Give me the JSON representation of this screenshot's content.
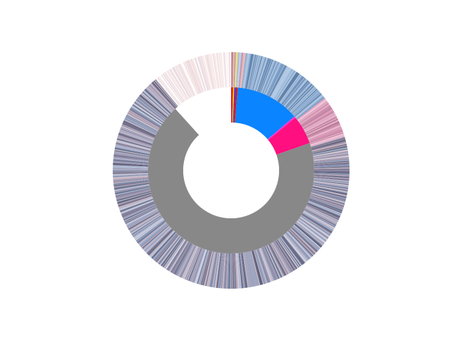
{
  "chart_data": {
    "type": "sunburst",
    "title": "",
    "center_hole": true,
    "inner_ring": {
      "start_angle_deg": 90,
      "direction": "clockwise",
      "slices": [
        {
          "value": 0.35,
          "color": "#e8100f"
        },
        {
          "value": 0.25,
          "color": "#f5d000"
        },
        {
          "value": 0.25,
          "color": "#1e3aff"
        },
        {
          "value": 0.4,
          "color": "#e8100f"
        },
        {
          "value": 12.5,
          "color": "#0a84ff"
        },
        {
          "value": 0.3,
          "color": "#ff2fd5"
        },
        {
          "value": 5.6,
          "color": "#ff0f7f"
        },
        {
          "value": 68.6,
          "color": "#888888"
        },
        {
          "value": 11.7,
          "color": "#ffffff"
        }
      ]
    },
    "outer_ring": {
      "start_angle_deg": 90,
      "direction": "clockwise",
      "segments": [
        {
          "value": 0.6,
          "palette": [
            "#e4b9bc",
            "#c98a90",
            "#b86a6f",
            "#efd0d2"
          ]
        },
        {
          "value": 0.4,
          "palette": [
            "#e4e4b0",
            "#cfcf88"
          ]
        },
        {
          "value": 0.5,
          "palette": [
            "#c9cde8",
            "#aab0d8"
          ]
        },
        {
          "value": 0.5,
          "palette": [
            "#e4b9bc",
            "#c98a90"
          ]
        },
        {
          "value": 12.5,
          "palette": [
            "#7ea1c9",
            "#9bb8d9",
            "#6f8fb8",
            "#aec6e2",
            "#8aa9cf",
            "#b6cce6",
            "#5e7fa6"
          ]
        },
        {
          "value": 5.9,
          "palette": [
            "#d99ab8",
            "#c98aa8",
            "#e6b3cb",
            "#b97a98",
            "#efc6d8"
          ]
        },
        {
          "value": 68.6,
          "palette": [
            "#8a8aa6",
            "#a2a3bb",
            "#6f708c",
            "#c0c1d4",
            "#94a3c4",
            "#b7a3b4",
            "#5e5f78",
            "#d0d2e0",
            "#9a8fa8",
            "#7c8aa8",
            "#adb7cf",
            "#6a6a80",
            "#c9b6c2"
          ]
        },
        {
          "value": 11.0,
          "palette": [
            "#ffffff",
            "#f4e6e8",
            "#ebd9dc",
            "#f9eeee",
            "#e6dde6",
            "#fbe9e6"
          ]
        }
      ]
    }
  }
}
